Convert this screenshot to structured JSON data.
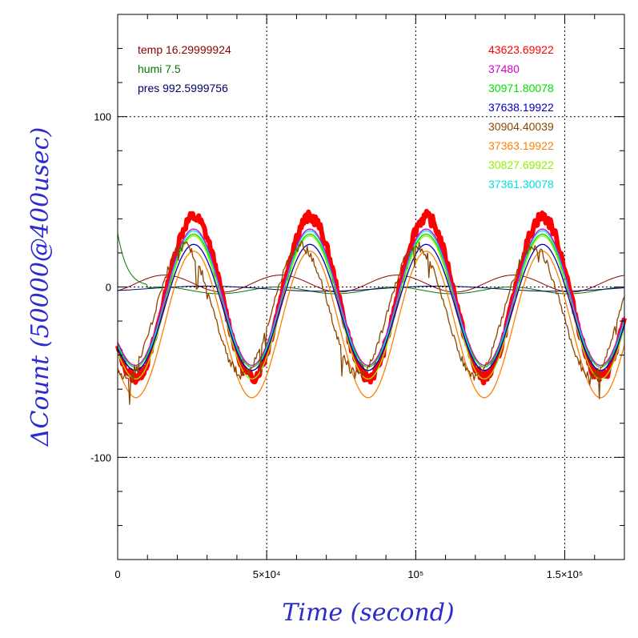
{
  "chart_data": {
    "type": "line",
    "xlabel": "Time (second)",
    "ylabel": "ΔCount (50000@400usec)",
    "xlim": [
      0,
      170000
    ],
    "ylim": [
      -160,
      160
    ],
    "x_ticks": [
      {
        "value": 0,
        "label": "0"
      },
      {
        "value": 50000,
        "label": "5×10⁴"
      },
      {
        "value": 100000,
        "label": "10⁵"
      },
      {
        "value": 150000,
        "label": "1.5×10⁵"
      }
    ],
    "y_ticks": [
      {
        "value": 100,
        "label": "100"
      },
      {
        "value": 0,
        "label": "0"
      },
      {
        "value": -100,
        "label": "-100"
      }
    ],
    "grid": true,
    "legend_env": [
      {
        "text": "temp 16.29999924",
        "color": "#8b0000"
      },
      {
        "text": "humi 7.5",
        "color": "#007a00"
      },
      {
        "text": "pres 992.5999756",
        "color": "#000066"
      }
    ],
    "series": [
      {
        "name": "43623.69922",
        "color": "#ff0000",
        "amplitude": 47,
        "offset": -6,
        "noise": 7,
        "peak_phase": 0.0
      },
      {
        "name": "37480",
        "color": "#d000d0",
        "amplitude": 40,
        "offset": -6,
        "noise": 0,
        "peak_phase": 0.0
      },
      {
        "name": "30971.80078",
        "color": "#00dd00",
        "amplitude": 39,
        "offset": -8,
        "noise": 0,
        "peak_phase": 0.0
      },
      {
        "name": "37638.19922",
        "color": "#0000c0",
        "amplitude": 37,
        "offset": -12,
        "noise": 0,
        "peak_phase": 0.0
      },
      {
        "name": "30904.40039",
        "color": "#8b4500",
        "amplitude": 38,
        "offset": -14,
        "noise": 6,
        "peak_phase": 0.08
      },
      {
        "name": "37363.19922",
        "color": "#ff8000",
        "amplitude": 43,
        "offset": -22,
        "noise": 0,
        "peak_phase": 0.0
      },
      {
        "name": "30827.69922",
        "color": "#90f000",
        "amplitude": 42,
        "offset": -12,
        "noise": 0,
        "peak_phase": 0.0
      },
      {
        "name": "37361.30078",
        "color": "#00e0e0",
        "amplitude": 41,
        "offset": -8,
        "noise": 0,
        "peak_phase": 0.0
      }
    ],
    "period_seconds": 39000,
    "first_peak_seconds": 25500,
    "env_series": [
      {
        "name": "temp",
        "color": "#8b0000"
      },
      {
        "name": "humi",
        "color": "#007a00"
      },
      {
        "name": "pres",
        "color": "#000066"
      }
    ]
  }
}
